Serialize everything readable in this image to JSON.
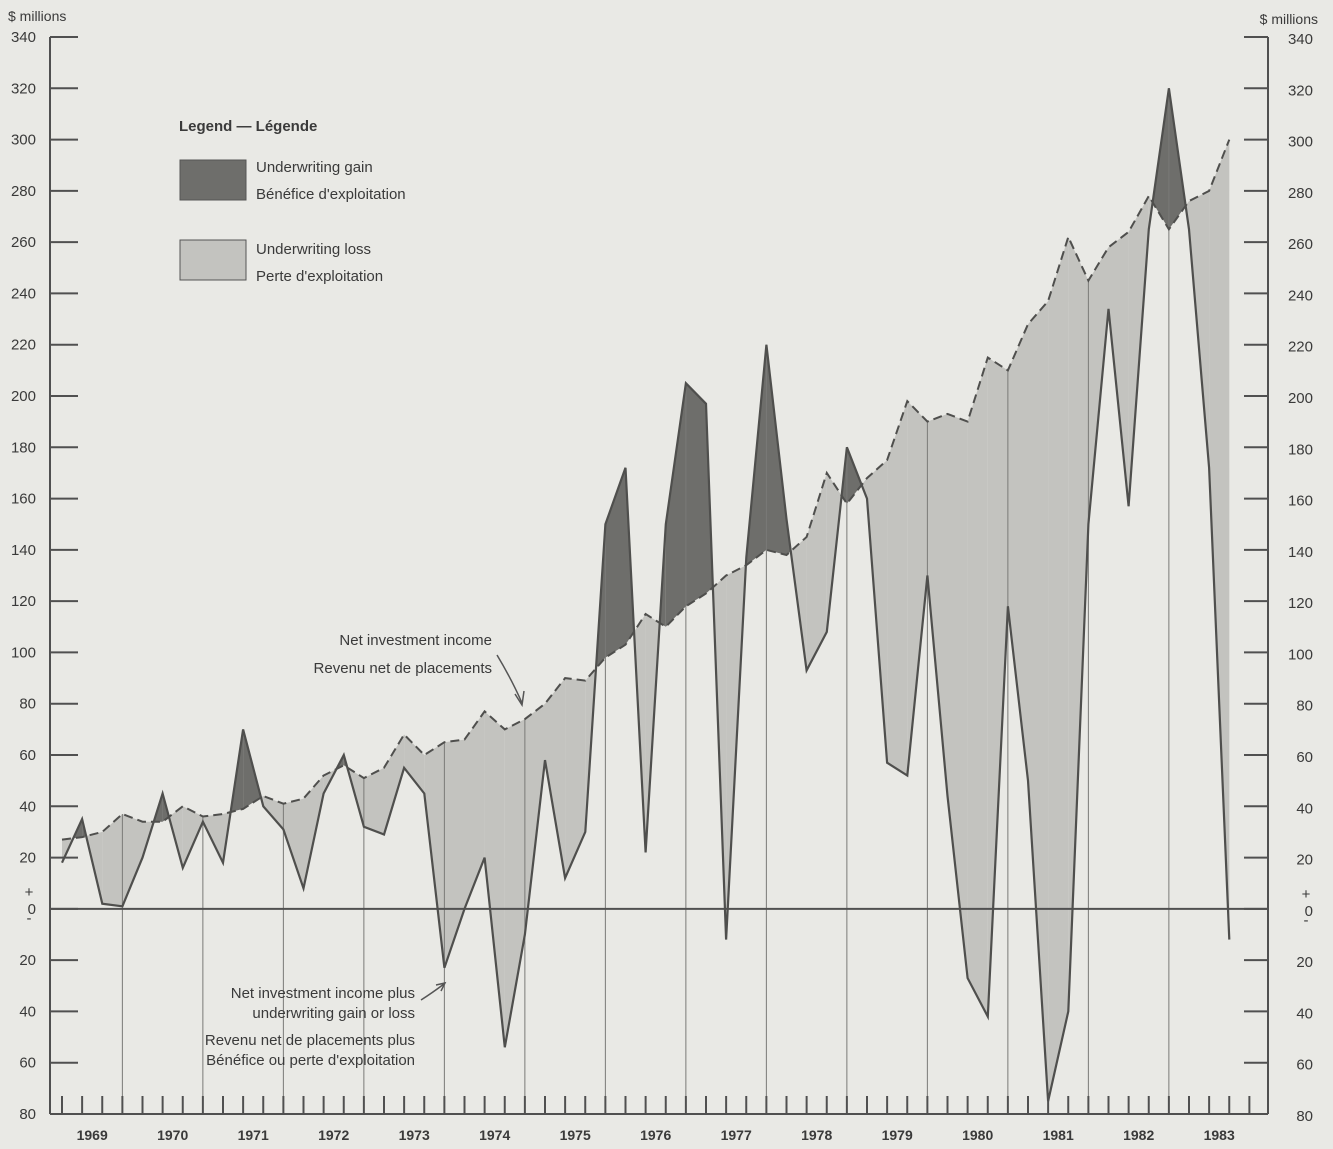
{
  "chart_data": {
    "type": "area",
    "unit_label_left": "$ millions",
    "unit_label_right": "$ millions",
    "y_ticks": [
      340,
      320,
      300,
      280,
      260,
      240,
      220,
      200,
      180,
      160,
      140,
      120,
      100,
      80,
      60,
      40,
      20,
      0,
      -20,
      -40,
      -60,
      -80
    ],
    "y_tick_labels": [
      "340",
      "320",
      "300",
      "280",
      "260",
      "240",
      "220",
      "200",
      "180",
      "160",
      "140",
      "120",
      "100",
      "80",
      "60",
      "40",
      "20",
      "0",
      "20",
      "40",
      "60",
      "80"
    ],
    "zero_signs": [
      "+",
      "-"
    ],
    "ylim": [
      -80,
      340
    ],
    "years": [
      "1969",
      "1970",
      "1971",
      "1972",
      "1973",
      "1974",
      "1975",
      "1976",
      "1977",
      "1978",
      "1979",
      "1980",
      "1981",
      "1982",
      "1983"
    ],
    "legend": {
      "title": "Legend — Légende",
      "gain": [
        "Underwriting gain",
        "Bénéfice d'exploitation"
      ],
      "loss": [
        "Underwriting loss",
        "Perte d'exploitation"
      ]
    },
    "annotations": {
      "net_investment_income": [
        "Net investment income",
        "Revenu net de placements"
      ],
      "net_plus_underwriting": [
        "Net investment income plus",
        "underwriting gain or loss",
        "Revenu net de placements plus",
        "Bénéfice ou perte d'exploitation"
      ]
    },
    "colors": {
      "gain": "#6e6e6b",
      "loss": "#c3c3bf",
      "line": "#4f4f4d",
      "background": "#e9e9e5"
    },
    "series": [
      {
        "name": "Net investment income",
        "x": [
          1969.0,
          1969.25,
          1969.5,
          1969.75,
          1970.0,
          1970.25,
          1970.5,
          1970.75,
          1971.0,
          1971.25,
          1971.5,
          1971.75,
          1972.0,
          1972.25,
          1972.5,
          1972.75,
          1973.0,
          1973.25,
          1973.5,
          1973.75,
          1974.0,
          1974.25,
          1974.5,
          1974.75,
          1975.0,
          1975.25,
          1975.5,
          1975.75,
          1976.0,
          1976.25,
          1976.5,
          1976.75,
          1977.0,
          1977.25,
          1977.5,
          1977.75,
          1978.0,
          1978.25,
          1978.5,
          1978.75,
          1979.0,
          1979.25,
          1979.5,
          1979.75,
          1980.0,
          1980.25,
          1980.5,
          1980.75,
          1981.0,
          1981.25,
          1981.5,
          1981.75,
          1982.0,
          1982.25,
          1982.5,
          1982.75,
          1983.0,
          1983.25,
          1983.5
        ],
        "values": [
          27,
          28,
          30,
          37,
          34,
          34,
          40,
          36,
          37,
          39,
          44,
          41,
          43,
          52,
          56,
          51,
          55,
          68,
          60,
          65,
          66,
          77,
          70,
          74,
          80,
          90,
          89,
          98,
          103,
          115,
          110,
          118,
          123,
          130,
          134,
          140,
          138,
          145,
          170,
          158,
          168,
          175,
          198,
          190,
          193,
          190,
          215,
          210,
          228,
          237,
          262,
          245,
          258,
          264,
          278,
          265,
          276,
          280,
          300
        ]
      },
      {
        "name": "Net investment income plus underwriting gain or loss",
        "x": [
          1969.0,
          1969.25,
          1969.5,
          1969.75,
          1970.0,
          1970.25,
          1970.5,
          1970.75,
          1971.0,
          1971.25,
          1971.5,
          1971.75,
          1972.0,
          1972.25,
          1972.5,
          1972.75,
          1973.0,
          1973.25,
          1973.5,
          1973.75,
          1974.0,
          1974.25,
          1974.5,
          1974.75,
          1975.0,
          1975.25,
          1975.5,
          1975.75,
          1976.0,
          1976.25,
          1976.5,
          1976.75,
          1977.0,
          1977.25,
          1977.5,
          1977.75,
          1978.0,
          1978.25,
          1978.5,
          1978.75,
          1979.0,
          1979.25,
          1979.5,
          1979.75,
          1980.0,
          1980.25,
          1980.5,
          1980.75,
          1981.0,
          1981.25,
          1981.5,
          1981.75,
          1982.0,
          1982.25,
          1982.5,
          1982.75,
          1983.0,
          1983.25,
          1983.5
        ],
        "values": [
          18,
          35,
          2,
          1,
          20,
          45,
          16,
          34,
          18,
          70,
          40,
          31,
          8,
          45,
          60,
          32,
          29,
          55,
          45,
          -23,
          0,
          20,
          -54,
          -10,
          58,
          12,
          30,
          150,
          172,
          22,
          150,
          205,
          197,
          -12,
          137,
          220,
          152,
          93,
          108,
          180,
          160,
          57,
          52,
          130,
          44,
          -27,
          -42,
          118,
          50,
          -75,
          -40,
          150,
          234,
          157,
          265,
          320,
          265,
          172,
          -12
        ]
      }
    ]
  }
}
